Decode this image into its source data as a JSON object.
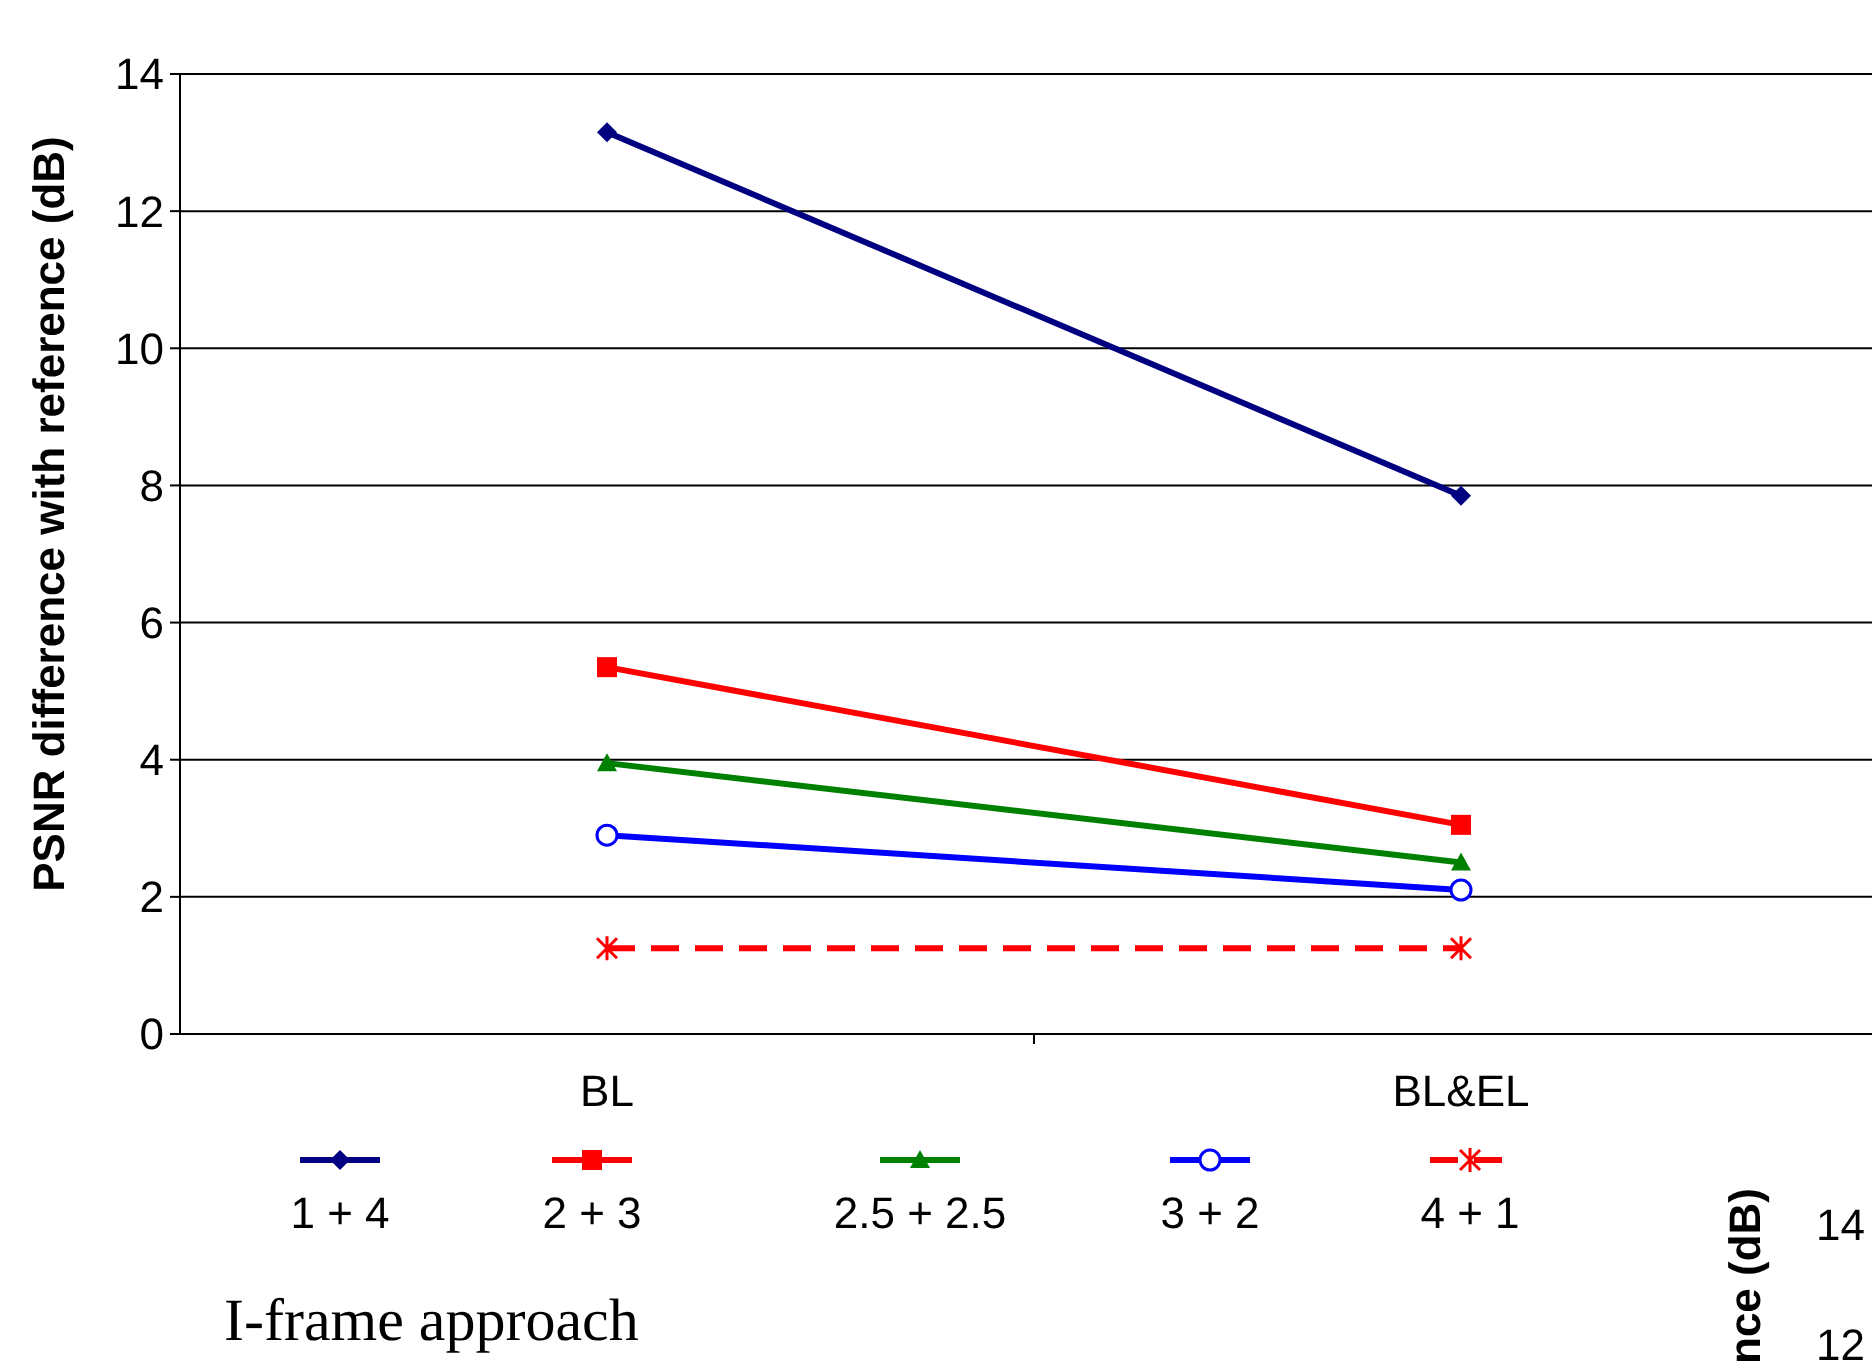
{
  "chart_data": {
    "type": "line",
    "title": "I-frame approach",
    "ylabel": "PSNR difference with reference (dB)",
    "categories": [
      "BL",
      "BL&EL"
    ],
    "ylim": [
      0,
      14
    ],
    "yticks": [
      0,
      2,
      4,
      6,
      8,
      10,
      12,
      14
    ],
    "grid": "y",
    "legend": "bottom",
    "series": [
      {
        "name": "1 + 4",
        "color": "#000080",
        "values": [
          13.15,
          7.85
        ],
        "marker": "diamond",
        "line_style": "solid"
      },
      {
        "name": "2 + 3",
        "color": "#ff0000",
        "values": [
          5.35,
          3.05
        ],
        "marker": "square",
        "line_style": "solid"
      },
      {
        "name": "2.5 + 2.5",
        "color": "#008000",
        "values": [
          3.95,
          2.5
        ],
        "marker": "triangle",
        "line_style": "solid"
      },
      {
        "name": "3 + 2",
        "color": "#0000ff",
        "values": [
          2.9,
          2.1
        ],
        "marker": "circle",
        "line_style": "solid"
      },
      {
        "name": "4 + 1",
        "color": "#ff0000",
        "values": [
          1.25,
          1.25
        ],
        "marker": "cross",
        "line_style": "dashed"
      }
    ],
    "annotations": [
      "nce (dB)",
      "14",
      "12"
    ]
  }
}
